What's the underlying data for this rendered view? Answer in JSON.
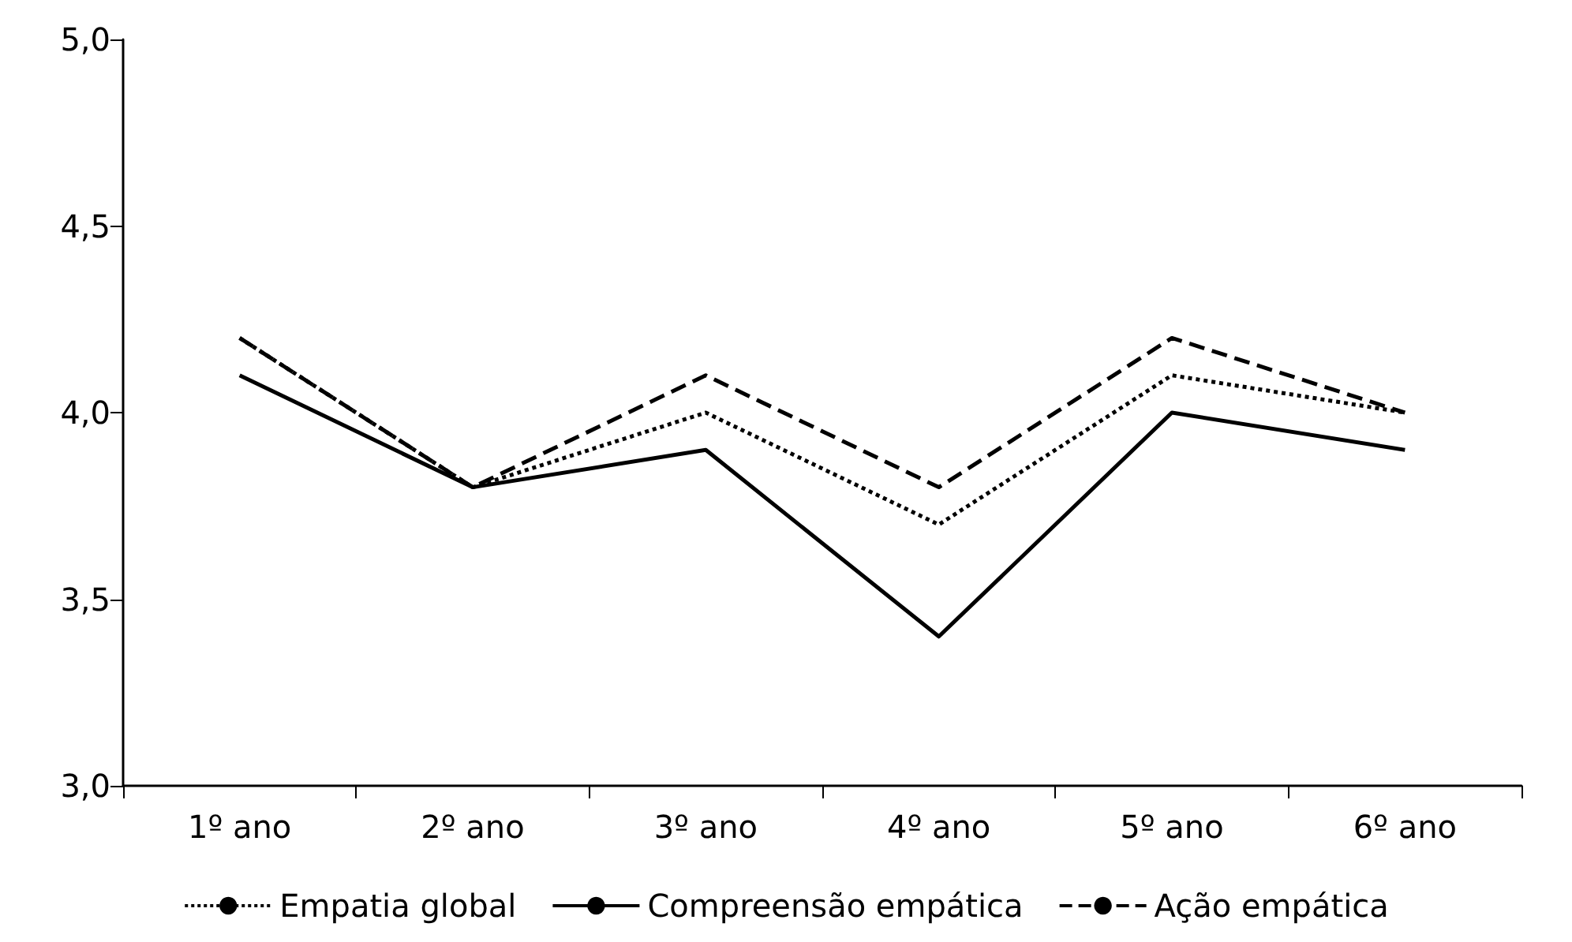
{
  "chart_data": {
    "type": "line",
    "categories": [
      "1º ano",
      "2º ano",
      "3º ano",
      "4º ano",
      "5º ano",
      "6º ano"
    ],
    "series": [
      {
        "name": "Empatia global",
        "color": "#000000",
        "line_style": "dotted",
        "values": [
          4.2,
          3.8,
          4.0,
          3.7,
          4.1,
          4.0
        ]
      },
      {
        "name": "Compreensão empática",
        "color": "#000000",
        "line_style": "solid",
        "values": [
          4.1,
          3.8,
          3.9,
          3.4,
          4.0,
          3.9
        ]
      },
      {
        "name": "Ação empática",
        "color": "#000000",
        "line_style": "dashed",
        "values": [
          4.2,
          3.8,
          4.1,
          3.8,
          4.2,
          4.0
        ]
      }
    ],
    "ylim": [
      3.0,
      5.0
    ],
    "yticks": [
      {
        "value": 3.0,
        "label": "3,0"
      },
      {
        "value": 3.5,
        "label": "3,5"
      },
      {
        "value": 4.0,
        "label": "4,0"
      },
      {
        "value": 4.5,
        "label": "4,5"
      },
      {
        "value": 5.0,
        "label": "5,0"
      }
    ],
    "grid": false,
    "legend": "bottom",
    "marker": "none"
  }
}
